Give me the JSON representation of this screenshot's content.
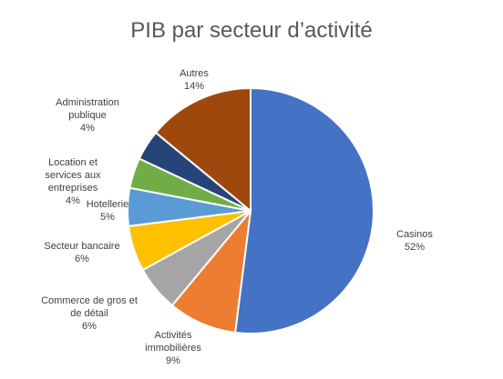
{
  "chart_data": {
    "type": "pie",
    "title": "PIB par secteur d’activité",
    "categories": [
      "Casinos",
      "Activités immobilières",
      "Commerce de gros et de détail",
      "Secteur bancaire",
      "Hotellerie",
      "Location et services aux entreprises",
      "Administration publique",
      "Autres"
    ],
    "values": [
      52,
      9,
      6,
      6,
      5,
      4,
      4,
      14
    ],
    "value_labels": [
      "52%",
      "9%",
      "6%",
      "6%",
      "5%",
      "4%",
      "4%",
      "14%"
    ],
    "colors": [
      "#4472c4",
      "#ed7d31",
      "#a5a5a5",
      "#ffc000",
      "#5b9bd5",
      "#70ad47",
      "#264478",
      "#9e480e"
    ]
  }
}
